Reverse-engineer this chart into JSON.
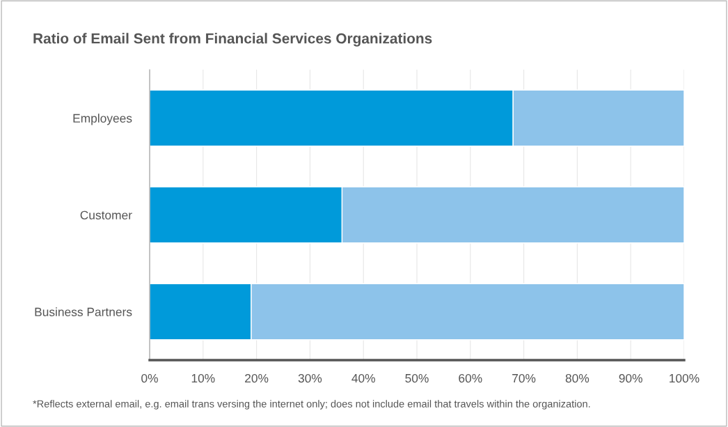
{
  "chart_data": {
    "type": "bar",
    "orientation": "horizontal",
    "stacked": true,
    "title": "Ratio of Email Sent from Financial Services Organizations",
    "categories": [
      "Employees",
      "Customer",
      "Business Partners"
    ],
    "series": [
      {
        "color": "#009ada",
        "values": [
          68,
          36,
          19
        ]
      },
      {
        "color": "#8dc3ea",
        "values": [
          32,
          64,
          81
        ]
      }
    ],
    "xlim": [
      0,
      100
    ],
    "xticks": [
      {
        "value": 0,
        "label": "0%"
      },
      {
        "value": 10,
        "label": "10%"
      },
      {
        "value": 20,
        "label": "20%"
      },
      {
        "value": 30,
        "label": "30%"
      },
      {
        "value": 40,
        "label": "40%"
      },
      {
        "value": 50,
        "label": "50%"
      },
      {
        "value": 60,
        "label": "60%"
      },
      {
        "value": 70,
        "label": "70%"
      },
      {
        "value": 80,
        "label": "80%"
      },
      {
        "value": 90,
        "label": "90%"
      },
      {
        "value": 100,
        "label": "100%"
      }
    ],
    "grid": "x",
    "legend": false,
    "annotations": [
      "*Reflects external email, e.g. email trans versing the internet only; does not include email that travels within the organization."
    ]
  }
}
